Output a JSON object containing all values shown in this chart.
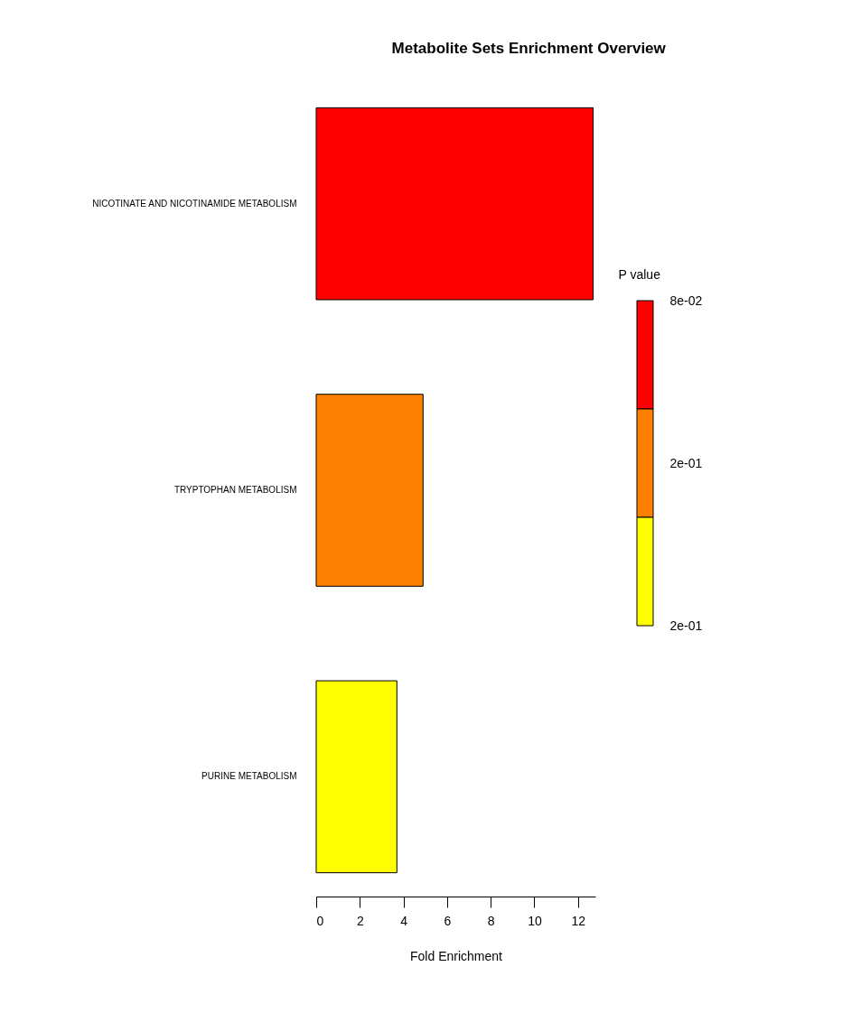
{
  "chart_data": {
    "type": "bar",
    "orientation": "horizontal",
    "title": "Metabolite Sets Enrichment Overview",
    "xlabel": "Fold Enrichment",
    "categories": [
      "NICOTINATE AND NICOTINAMIDE METABOLISM",
      "TRYPTOPHAN METABOLISM",
      "PURINE METABOLISM"
    ],
    "values": [
      12.7,
      4.9,
      3.7
    ],
    "colors": [
      "#ff0000",
      "#ff8000",
      "#ffff00"
    ],
    "xlim": [
      0,
      12.8
    ],
    "xticks": [
      0,
      2,
      4,
      6,
      8,
      10,
      12
    ],
    "clabel": "P value",
    "clim": [
      0.22,
      0.08
    ],
    "cticks": [
      {
        "value": 0.08,
        "label": "8e-02"
      },
      {
        "value": 0.15,
        "label": "2e-01"
      },
      {
        "value": 0.22,
        "label": "2e-01"
      }
    ]
  }
}
